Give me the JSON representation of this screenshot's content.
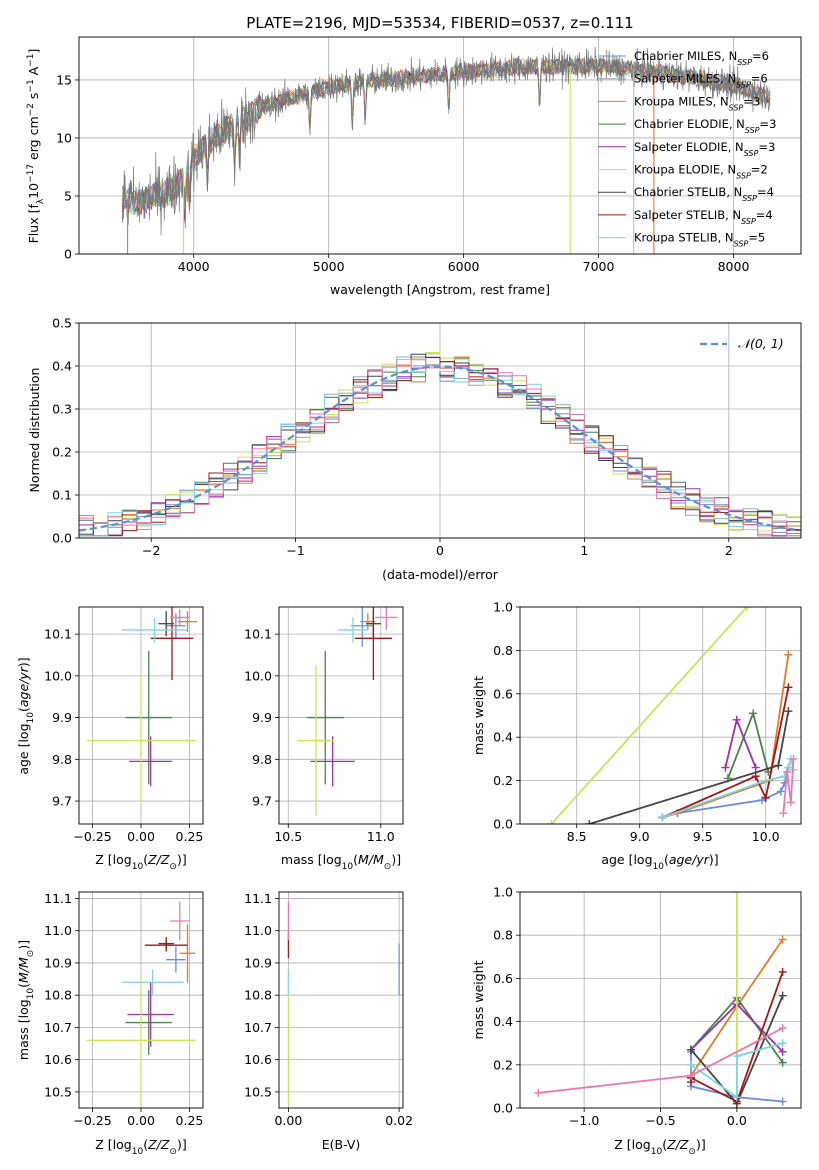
{
  "title": "PLATE=2196, MJD=53534, FIBERID=0537, z=0.111",
  "colors": {
    "chabrier_miles": "#6a8fd8",
    "salpeter_miles": "#9aa7b8",
    "kroupa_miles": "#e07b2a",
    "chabrier_elodie": "#4f7f4f",
    "salpeter_elodie": "#9b30b0",
    "kroupa_elodie": "#cfe05a",
    "chabrier_stelib": "#444444",
    "salpeter_stelib": "#a01818",
    "kroupa_stelib": "#7fd3e3",
    "pink": "#e87ab0",
    "normal": "#5b8fd6",
    "grid": "#b0b0b0"
  },
  "spectrum": {
    "ylabel": "Flux [f_λ10^-17 erg cm^-2 s^-1 A^-1]",
    "xlabel": "wavelength [Angstrom, rest frame]",
    "xlim": [
      3150,
      8500
    ],
    "ylim": [
      0,
      18.7
    ],
    "xticks": [
      "4000",
      "5000",
      "6000",
      "7000",
      "8000"
    ],
    "yticks": [
      "0",
      "5",
      "10",
      "15"
    ],
    "legend": [
      {
        "label": "Chabrier MILES, N_SSP=6",
        "color": "#6a8fd8"
      },
      {
        "label": "Salpeter MILES, N_SSP=6",
        "color": "#9aa7b8"
      },
      {
        "label": "Kroupa MILES, N_SSP=3",
        "color": "#e07b2a"
      },
      {
        "label": "Chabrier ELODIE, N_SSP=3",
        "color": "#4f7f4f"
      },
      {
        "label": "Salpeter ELODIE, N_SSP=3",
        "color": "#9b30b0"
      },
      {
        "label": "Kroupa ELODIE, N_SSP=2",
        "color": "#cfe05a"
      },
      {
        "label": "Chabrier STELIB, N_SSP=4",
        "color": "#444444"
      },
      {
        "label": "Salpeter STELIB, N_SSP=4",
        "color": "#a01818"
      },
      {
        "label": "Kroupa STELIB, N_SSP=5",
        "color": "#7fd3e3"
      }
    ]
  },
  "chart_data": [
    {
      "type": "line",
      "title": "PLATE=2196, MJD=53534, FIBERID=0537, z=0.111",
      "xlabel": "wavelength [Angstrom, rest frame]",
      "ylabel": "Flux [f_λ10^-17 erg cm^-2 s^-1 A^-1]",
      "xlim": [
        3150,
        8500
      ],
      "ylim": [
        0,
        18.7
      ],
      "continuum_x": [
        3470,
        3600,
        3700,
        3800,
        3900,
        4000,
        4100,
        4200,
        4300,
        4500,
        4700,
        5000,
        5300,
        5600,
        5900,
        6200,
        6500,
        6800,
        7000,
        7200,
        7400,
        7600,
        7800,
        8000,
        8200,
        8270
      ],
      "continuum_y": [
        4.8,
        4.5,
        5.0,
        5.3,
        6.2,
        8.2,
        9.6,
        10.4,
        11.1,
        12.6,
        13.4,
        14.4,
        14.9,
        15.2,
        15.6,
        15.9,
        16.1,
        16.2,
        16.2,
        16.0,
        15.7,
        15.4,
        15.0,
        14.5,
        13.8,
        13.5
      ],
      "absorption_lines_x": [
        3934,
        3969,
        4102,
        4304,
        4340,
        4861,
        5175,
        5270,
        5890,
        6563
      ]
    },
    {
      "type": "bar",
      "xlabel": "(data-model)/error",
      "ylabel": "Normed distribution",
      "xlim": [
        -2.5,
        2.5
      ],
      "ylim": [
        0,
        0.5
      ],
      "xticks": [
        "−2",
        "−1",
        "0",
        "1",
        "2"
      ],
      "yticks": [
        "0.0",
        "0.1",
        "0.2",
        "0.3",
        "0.4",
        "0.5"
      ],
      "legend": "𝒩(0, 1)",
      "bin_width": 0.1
    },
    {
      "type": "scatter",
      "xlabel": "Z [log10(Z/Z☉)]",
      "ylabel": "age [log10(age/yr)]",
      "xlim": [
        -0.32,
        0.32
      ],
      "ylim": [
        9.645,
        10.165
      ],
      "xticks": [
        "−0.25",
        "0.00",
        "0.25"
      ],
      "yticks": [
        "9.7",
        "9.8",
        "9.9",
        "10.0",
        "10.1"
      ],
      "points": [
        {
          "x": 0.18,
          "y": 10.12,
          "xerr": 0.05,
          "yerr": 0.03,
          "color": "#6a8fd8"
        },
        {
          "x": 0.24,
          "y": 10.13,
          "xerr": 0.05,
          "yerr": 0.025,
          "color": "#e07b2a"
        },
        {
          "x": 0.04,
          "y": 9.9,
          "xerr": 0.12,
          "yerr": 0.16,
          "color": "#4f7f4f"
        },
        {
          "x": 0.05,
          "y": 9.795,
          "xerr": 0.11,
          "yerr": 0.06,
          "color": "#9b30b0"
        },
        {
          "x": 0.0,
          "y": 9.845,
          "xerr": 0.28,
          "yerr": 0.155,
          "color": "#cfe05a"
        },
        {
          "x": 0.13,
          "y": 10.125,
          "xerr": 0.04,
          "yerr": 0.03,
          "color": "#444444"
        },
        {
          "x": 0.16,
          "y": 10.09,
          "xerr": 0.11,
          "yerr": 0.1,
          "color": "#a01818"
        },
        {
          "x": 0.07,
          "y": 10.11,
          "xerr": 0.17,
          "yerr": 0.03,
          "color": "#7fd3e3"
        },
        {
          "x": 0.2,
          "y": 10.14,
          "xerr": 0.05,
          "yerr": 0.02,
          "color": "#e87ab0"
        }
      ]
    },
    {
      "type": "scatter",
      "xlabel": "mass [log10(M/M☉)]",
      "ylabel": "",
      "xlim": [
        10.45,
        11.12
      ],
      "ylim": [
        9.645,
        10.165
      ],
      "xticks": [
        "10.5",
        "11.0"
      ],
      "yticks": [
        "9.7",
        "9.8",
        "9.9",
        "10.0",
        "10.1"
      ],
      "points": [
        {
          "x": 10.9,
          "y": 10.12,
          "xerr": 0.06,
          "yerr": 0.05,
          "color": "#6a8fd8"
        },
        {
          "x": 10.93,
          "y": 10.13,
          "xerr": 0.04,
          "yerr": 0.02,
          "color": "#e07b2a"
        },
        {
          "x": 10.7,
          "y": 9.9,
          "xerr": 0.1,
          "yerr": 0.16,
          "color": "#4f7f4f"
        },
        {
          "x": 10.74,
          "y": 9.795,
          "xerr": 0.12,
          "yerr": 0.06,
          "color": "#9b30b0"
        },
        {
          "x": 10.65,
          "y": 9.845,
          "xerr": 0.1,
          "yerr": 0.18,
          "color": "#cfe05a"
        },
        {
          "x": 10.96,
          "y": 10.125,
          "xerr": 0.04,
          "yerr": 0.03,
          "color": "#444444"
        },
        {
          "x": 10.96,
          "y": 10.09,
          "xerr": 0.1,
          "yerr": 0.1,
          "color": "#a01818"
        },
        {
          "x": 10.85,
          "y": 10.11,
          "xerr": 0.08,
          "yerr": 0.03,
          "color": "#7fd3e3"
        },
        {
          "x": 11.03,
          "y": 10.14,
          "xerr": 0.06,
          "yerr": 0.03,
          "color": "#e87ab0"
        }
      ]
    },
    {
      "type": "line",
      "xlabel": "age [log10(age/yr)]",
      "ylabel": "mass weight",
      "xlim": [
        8.05,
        10.28
      ],
      "ylim": [
        0,
        1.0
      ],
      "xticks": [
        "8.5",
        "9.0",
        "9.5",
        "10.0"
      ],
      "yticks": [
        "0.0",
        "0.2",
        "0.4",
        "0.6",
        "0.8",
        "1.0"
      ],
      "series": [
        {
          "color": "#6a8fd8",
          "x": [
            9.18,
            9.3,
            9.97,
            10.12,
            10.15,
            10.18
          ],
          "y": [
            0.03,
            0.05,
            0.11,
            0.15,
            0.19,
            0.26
          ]
        },
        {
          "color": "#e07b2a",
          "x": [
            9.18,
            9.3,
            10.03,
            10.18
          ],
          "y": [
            0.03,
            0.05,
            0.2,
            0.78
          ]
        },
        {
          "color": "#4f7f4f",
          "x": [
            9.7,
            9.9,
            10.02
          ],
          "y": [
            0.21,
            0.51,
            0.24
          ]
        },
        {
          "color": "#9b30b0",
          "x": [
            9.68,
            9.77,
            9.92
          ],
          "y": [
            0.26,
            0.48,
            0.26
          ]
        },
        {
          "color": "#cfe05a",
          "x": [
            8.3,
            9.85
          ],
          "y": [
            0.0,
            1.0
          ]
        },
        {
          "color": "#444444",
          "x": [
            8.6,
            10.1,
            10.18
          ],
          "y": [
            0.0,
            0.27,
            0.52
          ]
        },
        {
          "color": "#a01818",
          "x": [
            9.18,
            9.92,
            10.0,
            10.18
          ],
          "y": [
            0.03,
            0.22,
            0.12,
            0.63
          ]
        },
        {
          "color": "#7fd3e3",
          "x": [
            9.18,
            10.0,
            10.15,
            10.18,
            10.2,
            10.22
          ],
          "y": [
            0.03,
            0.2,
            0.22,
            0.26,
            0.3,
            0.25
          ]
        },
        {
          "color": "#e87ab0",
          "x": [
            10.14,
            10.17,
            10.2,
            10.22
          ],
          "y": [
            0.05,
            0.24,
            0.1,
            0.3
          ]
        }
      ]
    },
    {
      "type": "scatter",
      "xlabel": "Z [log10(Z/Z☉)]",
      "ylabel": "mass [log10(M/M☉)]",
      "xlim": [
        -0.32,
        0.32
      ],
      "ylim": [
        10.45,
        11.12
      ],
      "xticks": [
        "−0.25",
        "0.00",
        "0.25"
      ],
      "yticks": [
        "10.5",
        "10.6",
        "10.7",
        "10.8",
        "10.9",
        "11.0",
        "11.1"
      ],
      "points": [
        {
          "x": 0.18,
          "y": 10.91,
          "xerr": 0.05,
          "yerr": 0.04,
          "color": "#6a8fd8"
        },
        {
          "x": 0.24,
          "y": 10.93,
          "xerr": 0.04,
          "yerr": 0.09,
          "color": "#e07b2a"
        },
        {
          "x": 0.04,
          "y": 10.715,
          "xerr": 0.12,
          "yerr": 0.1,
          "color": "#4f7f4f"
        },
        {
          "x": 0.05,
          "y": 10.74,
          "xerr": 0.12,
          "yerr": 0.1,
          "color": "#9b30b0"
        },
        {
          "x": 0.0,
          "y": 10.66,
          "xerr": 0.28,
          "yerr": 0.2,
          "color": "#cfe05a"
        },
        {
          "x": 0.13,
          "y": 10.96,
          "xerr": 0.04,
          "yerr": 0.02,
          "color": "#444444"
        },
        {
          "x": 0.13,
          "y": 10.955,
          "xerr": 0.11,
          "yerr": 0.02,
          "color": "#a01818"
        },
        {
          "x": 0.06,
          "y": 10.84,
          "xerr": 0.16,
          "yerr": 0.04,
          "color": "#7fd3e3"
        },
        {
          "x": 0.2,
          "y": 11.03,
          "xerr": 0.05,
          "yerr": 0.06,
          "color": "#e87ab0"
        }
      ]
    },
    {
      "type": "scatter",
      "xlabel": "E(B-V)",
      "ylabel": "",
      "xlim": [
        -0.0017,
        0.0207
      ],
      "ylim": [
        10.45,
        11.12
      ],
      "xticks": [
        "0.00",
        "0.02"
      ],
      "yticks": [
        "10.5",
        "10.6",
        "10.7",
        "10.8",
        "10.9",
        "11.0",
        "11.1"
      ],
      "points": [
        {
          "x": 0.0,
          "y": 10.66,
          "yerr": 0.2,
          "color": "#cfe05a"
        },
        {
          "x": 0.0,
          "y": 10.84,
          "yerr": 0.04,
          "color": "#7fd3e3"
        },
        {
          "x": 0.0,
          "y": 10.955,
          "yerr": 0.04,
          "color": "#a01818"
        },
        {
          "x": 0.0,
          "y": 11.03,
          "yerr": 0.06,
          "color": "#e87ab0"
        },
        {
          "x": 0.02,
          "y": 10.88,
          "yerr": 0.08,
          "color": "#6a8fd8"
        }
      ]
    },
    {
      "type": "line",
      "xlabel": "Z [log10(Z/Z☉)]",
      "ylabel": "mass weight",
      "xlim": [
        -1.42,
        0.42
      ],
      "ylim": [
        0,
        1.0
      ],
      "xticks": [
        "−1.0",
        "−0.5",
        "0.0"
      ],
      "yticks": [
        "0.0",
        "0.2",
        "0.4",
        "0.6",
        "0.8",
        "1.0"
      ],
      "series": [
        {
          "color": "#6a8fd8",
          "x": [
            -0.3,
            -0.3,
            0.0,
            0.3
          ],
          "y": [
            0.26,
            0.1,
            0.05,
            0.03
          ]
        },
        {
          "color": "#e07b2a",
          "x": [
            -0.3,
            0.0,
            0.3
          ],
          "y": [
            0.15,
            0.47,
            0.78
          ]
        },
        {
          "color": "#4f7f4f",
          "x": [
            -0.3,
            0.0,
            0.3
          ],
          "y": [
            0.27,
            0.51,
            0.21
          ]
        },
        {
          "color": "#9b30b0",
          "x": [
            -0.3,
            0.0,
            0.3
          ],
          "y": [
            0.27,
            0.48,
            0.26
          ]
        },
        {
          "color": "#cfe05a",
          "x": [
            0.0,
            0.0
          ],
          "y": [
            0.0,
            1.0
          ]
        },
        {
          "color": "#444444",
          "x": [
            -0.3,
            0.0,
            0.3
          ],
          "y": [
            0.27,
            0.02,
            0.52
          ]
        },
        {
          "color": "#a01818",
          "x": [
            -0.3,
            -0.3,
            0.0,
            0.3
          ],
          "y": [
            0.12,
            0.14,
            0.03,
            0.63
          ]
        },
        {
          "color": "#7fd3e3",
          "x": [
            -0.3,
            0.0,
            0.0,
            0.3
          ],
          "y": [
            0.2,
            0.05,
            0.24,
            0.3
          ]
        },
        {
          "color": "#e87ab0",
          "x": [
            -1.3,
            -0.3,
            0.3
          ],
          "y": [
            0.07,
            0.15,
            0.37
          ]
        }
      ]
    }
  ]
}
